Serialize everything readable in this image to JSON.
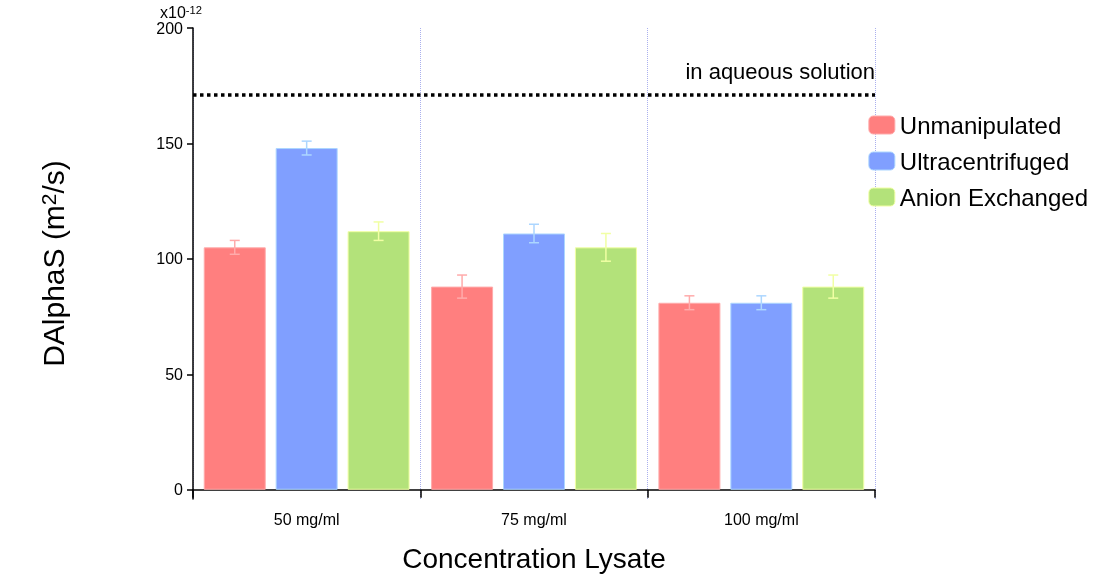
{
  "chart_data": {
    "type": "bar",
    "xlabel": "Concentration Lysate",
    "ylabel": "DAlphaS (m$^{2}$/s)",
    "categories": [
      "50 mg/ml",
      "75 mg/ml",
      "100 mg/ml"
    ],
    "series": [
      {
        "name": "Unmanipulated",
        "color": "#ff7f7f",
        "values": [
          105,
          88,
          81
        ],
        "errors": [
          3,
          5,
          3
        ]
      },
      {
        "name": "Ultracentrifuged",
        "color": "#809fff",
        "values": [
          148,
          111,
          81
        ],
        "errors": [
          3,
          4,
          3
        ]
      },
      {
        "name": "Anion Exchanged",
        "color": "#b3e27a",
        "values": [
          112,
          105,
          88
        ],
        "errors": [
          4,
          6,
          5
        ]
      }
    ],
    "ylim": [
      -4,
      200
    ],
    "yticks": [
      0,
      50,
      100,
      150,
      200
    ],
    "annotations": [
      "x10$^{-12}$"
    ],
    "ref_lines": [
      {
        "axis": "y",
        "value": 171,
        "label": "in aqueous solution",
        "color": "#000000",
        "line_style": "dotted"
      }
    ],
    "grid": "x",
    "legend": "top right"
  }
}
